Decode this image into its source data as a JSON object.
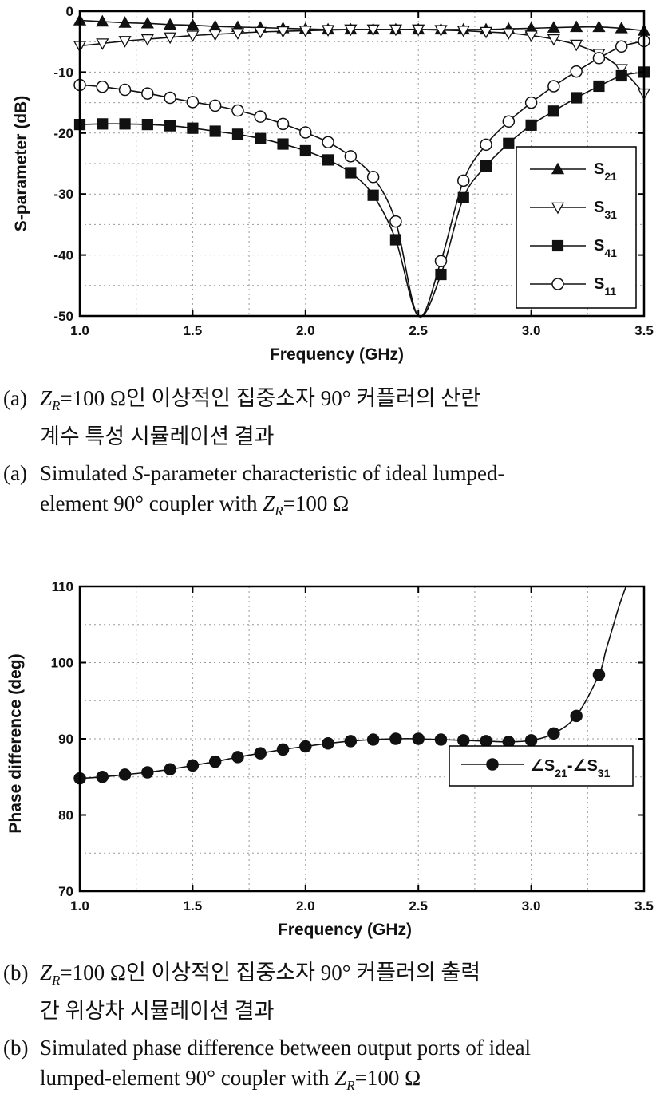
{
  "figure_a": {
    "caption_ko": {
      "label": "(a)",
      "z": "Z",
      "z_sub": "R",
      "line1_rest": "=100 Ω인 이상적인 집중소자 90° 커플러의 산란",
      "line2": "계수 특성 시뮬레이션 결과"
    },
    "caption_en": {
      "label": "(a)",
      "pre": "Simulated ",
      "s": "S",
      "line1_rest": "-parameter characteristic of ideal lumped-",
      "line2_pre": "element 90° coupler with ",
      "z": "Z",
      "z_sub": "R",
      "line2_post": "=100 Ω"
    }
  },
  "figure_b": {
    "caption_ko": {
      "label": "(b)",
      "z": "Z",
      "z_sub": "R",
      "line1_rest": "=100 Ω인 이상적인 집중소자 90° 커플러의 출력",
      "line2": "간 위상차 시뮬레이션 결과"
    },
    "caption_en": {
      "label": "(b)",
      "line1": "Simulated phase difference between output ports of ideal",
      "line2_pre": "lumped-element 90° coupler with ",
      "z": "Z",
      "z_sub": "R",
      "line2_post": "=100 Ω"
    }
  },
  "chart_data": [
    {
      "type": "line",
      "xlabel": "Frequency (GHz)",
      "ylabel": "S-parameter (dB)",
      "xlim": [
        1.0,
        3.5
      ],
      "ylim": [
        -50,
        0
      ],
      "xticks": [
        "1.0",
        "1.5",
        "2.0",
        "2.5",
        "3.0",
        "3.5"
      ],
      "yticks": [
        "0",
        "-10",
        "-20",
        "-30",
        "-40",
        "-50"
      ],
      "grid": true,
      "legend_position": "bottom-right",
      "x": [
        1.0,
        1.1,
        1.2,
        1.3,
        1.4,
        1.5,
        1.6,
        1.7,
        1.8,
        1.9,
        2.0,
        2.1,
        2.2,
        2.3,
        2.4,
        2.5,
        2.6,
        2.7,
        2.8,
        2.9,
        3.0,
        3.1,
        3.2,
        3.3,
        3.4,
        3.5
      ],
      "series": [
        {
          "name": "S21",
          "label_main": "S",
          "label_sub": "21",
          "marker": "triangle-up",
          "fill": "#111111",
          "values": [
            -1.5,
            -1.7,
            -1.9,
            -2.0,
            -2.2,
            -2.3,
            -2.5,
            -2.6,
            -2.7,
            -2.8,
            -2.9,
            -3.0,
            -3.0,
            -3.0,
            -3.0,
            -3.0,
            -3.0,
            -3.0,
            -3.0,
            -2.9,
            -2.8,
            -2.7,
            -2.6,
            -2.6,
            -2.8,
            -3.2
          ]
        },
        {
          "name": "S31",
          "label_main": "S",
          "label_sub": "31",
          "marker": "triangle-down",
          "fill": "#ffffff",
          "values": [
            -5.7,
            -5.3,
            -4.9,
            -4.6,
            -4.3,
            -4.0,
            -3.8,
            -3.6,
            -3.4,
            -3.3,
            -3.2,
            -3.1,
            -3.0,
            -3.0,
            -3.0,
            -3.0,
            -3.1,
            -3.2,
            -3.4,
            -3.6,
            -4.0,
            -4.6,
            -5.5,
            -7.0,
            -9.5,
            -13.5
          ]
        },
        {
          "name": "S41",
          "label_main": "S",
          "label_sub": "41",
          "marker": "square",
          "fill": "#111111",
          "values": [
            -18.6,
            -18.5,
            -18.5,
            -18.6,
            -18.8,
            -19.2,
            -19.7,
            -20.2,
            -20.9,
            -21.8,
            -22.9,
            -24.4,
            -26.5,
            -30.2,
            -37.5,
            -50,
            -43.2,
            -30.6,
            -25.4,
            -21.7,
            -18.7,
            -16.4,
            -14.2,
            -12.3,
            -10.6,
            -10.0
          ]
        },
        {
          "name": "S11",
          "label_main": "S",
          "label_sub": "11",
          "marker": "circle",
          "fill": "#ffffff",
          "values": [
            -12.1,
            -12.4,
            -12.9,
            -13.5,
            -14.2,
            -14.9,
            -15.5,
            -16.3,
            -17.3,
            -18.5,
            -19.9,
            -21.5,
            -23.8,
            -27.2,
            -34.5,
            -50,
            -41.0,
            -27.8,
            -21.9,
            -18.1,
            -15.0,
            -12.3,
            -9.9,
            -7.7,
            -5.8,
            -4.9
          ]
        }
      ]
    },
    {
      "type": "line",
      "xlabel": "Frequency (GHz)",
      "ylabel": "Phase difference (deg)",
      "xlim": [
        1.0,
        3.5
      ],
      "ylim": [
        70,
        110
      ],
      "xticks": [
        "1.0",
        "1.5",
        "2.0",
        "2.5",
        "3.0",
        "3.5"
      ],
      "yticks": [
        "110",
        "100",
        "90",
        "80",
        "70"
      ],
      "grid": true,
      "legend_position": "middle-right",
      "x": [
        1.0,
        1.1,
        1.2,
        1.3,
        1.4,
        1.5,
        1.6,
        1.7,
        1.8,
        1.9,
        2.0,
        2.1,
        2.2,
        2.3,
        2.4,
        2.5,
        2.6,
        2.7,
        2.8,
        2.9,
        3.0,
        3.1,
        3.2,
        3.3
      ],
      "series": [
        {
          "name": "∠S21-∠S31",
          "label_parts": [
            "∠S",
            "21",
            "-∠S",
            "31"
          ],
          "marker": "circle",
          "fill": "#111111",
          "values": [
            84.8,
            85.0,
            85.3,
            85.6,
            86.0,
            86.5,
            87.0,
            87.6,
            88.1,
            88.6,
            89.0,
            89.4,
            89.7,
            89.9,
            90.0,
            90.0,
            89.9,
            89.8,
            89.7,
            89.6,
            89.8,
            90.7,
            93.0,
            98.4
          ]
        }
      ],
      "curve_extension": {
        "x": [
          3.33,
          3.36,
          3.39,
          3.42
        ],
        "values": [
          101.5,
          104.5,
          107.5,
          110
        ]
      }
    }
  ]
}
